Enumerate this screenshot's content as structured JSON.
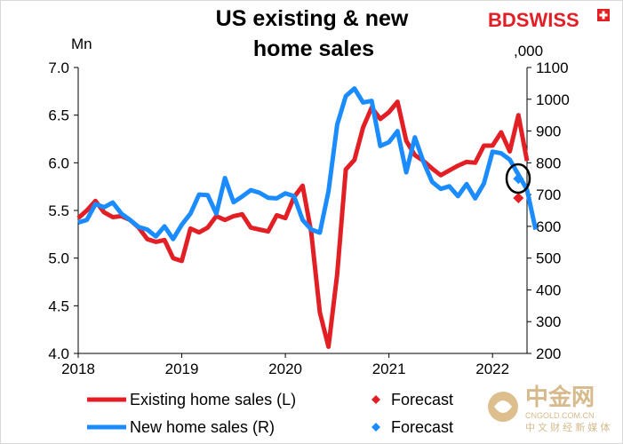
{
  "brand": {
    "part1": "BD",
    "part2": "SWISS",
    "color": "#e31f26"
  },
  "watermark": {
    "title": "中金网",
    "domain": "CNGOLD.COM.CN",
    "tagline": "中 文 财 经 新 媒 体",
    "color": "#c8a05a"
  },
  "chart_data": {
    "type": "line",
    "title_lines": [
      "US existing & new",
      "home sales"
    ],
    "left_axis": {
      "unit": "Mn",
      "range": [
        4.0,
        7.0
      ],
      "ticks": [
        "4.0",
        "4.5",
        "5.0",
        "5.5",
        "6.0",
        "6.5",
        "7.0"
      ]
    },
    "right_axis": {
      "unit": ",000",
      "range": [
        200,
        1100
      ],
      "ticks": [
        "200",
        "300",
        "400",
        "500",
        "600",
        "700",
        "800",
        "900",
        "1000",
        "1100"
      ]
    },
    "x_axis": {
      "range": [
        2018.0,
        2022.333
      ],
      "ticks": [
        "2018",
        "2019",
        "2020",
        "2021",
        "2022"
      ]
    },
    "series": [
      {
        "name": "Existing home sales (L)",
        "axis": "left",
        "color": "#e31f26",
        "start": 2018.0,
        "step": 0.08333,
        "values": [
          5.42,
          5.5,
          5.6,
          5.48,
          5.43,
          5.44,
          5.4,
          5.32,
          5.2,
          5.17,
          5.19,
          5.0,
          4.97,
          5.31,
          5.27,
          5.32,
          5.44,
          5.4,
          5.44,
          5.46,
          5.32,
          5.3,
          5.28,
          5.45,
          5.42,
          5.64,
          5.76,
          5.27,
          4.43,
          4.07,
          4.83,
          5.93,
          6.03,
          6.37,
          6.58,
          6.46,
          6.53,
          6.64,
          6.23,
          6.08,
          6.02,
          5.94,
          5.87,
          5.92,
          5.97,
          6.01,
          6.0,
          6.18,
          6.18,
          6.32,
          6.12,
          6.5,
          6.02
        ]
      },
      {
        "name": "New home sales (R)",
        "axis": "right",
        "color": "#1a8cff",
        "start": 2018.0,
        "step": 0.08333,
        "values": [
          612,
          620,
          670,
          660,
          675,
          640,
          620,
          598,
          590,
          568,
          600,
          560,
          605,
          640,
          700,
          698,
          640,
          752,
          676,
          694,
          714,
          706,
          690,
          688,
          704,
          695,
          620,
          590,
          580,
          710,
          920,
          1010,
          1034,
          990,
          995,
          853,
          865,
          900,
          770,
          880,
          803,
          740,
          718,
          726,
          695,
          733,
          688,
          735,
          835,
          830,
          810,
          763,
          715,
          590
        ]
      }
    ],
    "forecasts": [
      {
        "series": "Existing home sales (L)",
        "x": 2022.25,
        "value": 5.63,
        "axis": "left",
        "color": "#e31f26"
      },
      {
        "series": "New home sales (R)",
        "x": 2022.25,
        "value": 750,
        "axis": "right",
        "color": "#1a8cff"
      }
    ],
    "legend": [
      {
        "label": "Existing home sales (L)",
        "kind": "line",
        "color": "#e31f26"
      },
      {
        "label": "Forecast",
        "kind": "marker",
        "color": "#e31f26"
      },
      {
        "label": "New home sales (R)",
        "kind": "line",
        "color": "#1a8cff"
      },
      {
        "label": "Forecast",
        "kind": "marker",
        "color": "#1a8cff"
      }
    ]
  }
}
